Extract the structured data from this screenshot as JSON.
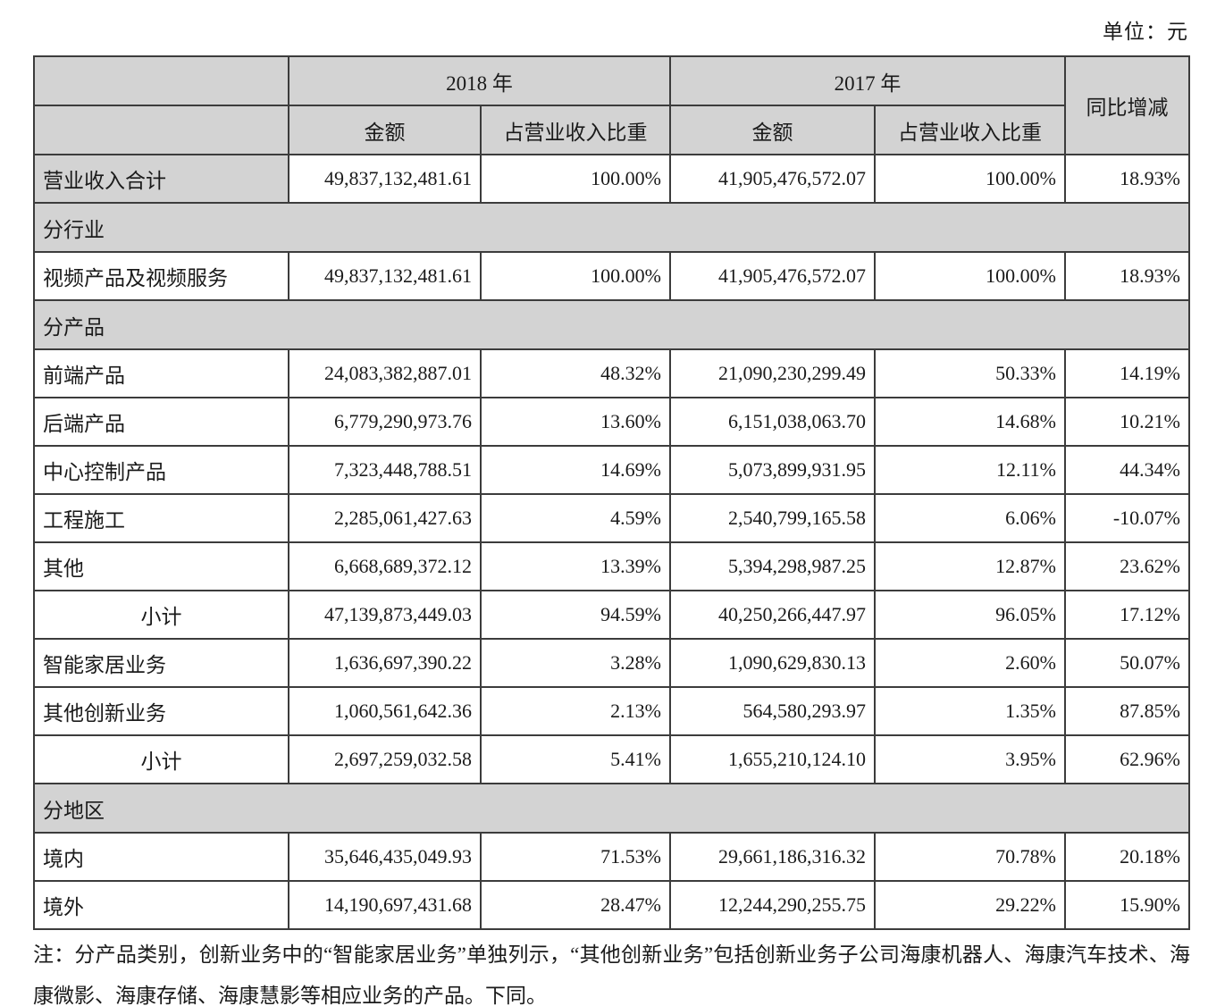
{
  "unit_label": "单位：元",
  "table": {
    "header": {
      "year_2018": "2018 年",
      "year_2017": "2017 年",
      "amount": "金额",
      "ratio": "占营业收入比重",
      "yoy": "同比增减"
    },
    "rows": [
      {
        "type": "data",
        "gray": true,
        "label": "营业收入合计",
        "amount_2018": "49,837,132,481.61",
        "ratio_2018": "100.00%",
        "amount_2017": "41,905,476,572.07",
        "ratio_2017": "100.00%",
        "yoy": "18.93%"
      },
      {
        "type": "section",
        "label": "分行业"
      },
      {
        "type": "data",
        "label": "视频产品及视频服务",
        "amount_2018": "49,837,132,481.61",
        "ratio_2018": "100.00%",
        "amount_2017": "41,905,476,572.07",
        "ratio_2017": "100.00%",
        "yoy": "18.93%"
      },
      {
        "type": "section",
        "label": "分产品"
      },
      {
        "type": "data",
        "label": "前端产品",
        "amount_2018": "24,083,382,887.01",
        "ratio_2018": "48.32%",
        "amount_2017": "21,090,230,299.49",
        "ratio_2017": "50.33%",
        "yoy": "14.19%"
      },
      {
        "type": "data",
        "label": "后端产品",
        "amount_2018": "6,779,290,973.76",
        "ratio_2018": "13.60%",
        "amount_2017": "6,151,038,063.70",
        "ratio_2017": "14.68%",
        "yoy": "10.21%"
      },
      {
        "type": "data",
        "label": "中心控制产品",
        "amount_2018": "7,323,448,788.51",
        "ratio_2018": "14.69%",
        "amount_2017": "5,073,899,931.95",
        "ratio_2017": "12.11%",
        "yoy": "44.34%"
      },
      {
        "type": "data",
        "label": "工程施工",
        "amount_2018": "2,285,061,427.63",
        "ratio_2018": "4.59%",
        "amount_2017": "2,540,799,165.58",
        "ratio_2017": "6.06%",
        "yoy": "-10.07%"
      },
      {
        "type": "data",
        "label": "其他",
        "amount_2018": "6,668,689,372.12",
        "ratio_2018": "13.39%",
        "amount_2017": "5,394,298,987.25",
        "ratio_2017": "12.87%",
        "yoy": "23.62%"
      },
      {
        "type": "data",
        "center": true,
        "label": "小计",
        "amount_2018": "47,139,873,449.03",
        "ratio_2018": "94.59%",
        "amount_2017": "40,250,266,447.97",
        "ratio_2017": "96.05%",
        "yoy": "17.12%"
      },
      {
        "type": "data",
        "label": "智能家居业务",
        "amount_2018": "1,636,697,390.22",
        "ratio_2018": "3.28%",
        "amount_2017": "1,090,629,830.13",
        "ratio_2017": "2.60%",
        "yoy": "50.07%"
      },
      {
        "type": "data",
        "label": "其他创新业务",
        "amount_2018": "1,060,561,642.36",
        "ratio_2018": "2.13%",
        "amount_2017": "564,580,293.97",
        "ratio_2017": "1.35%",
        "yoy": "87.85%"
      },
      {
        "type": "data",
        "center": true,
        "label": "小计",
        "amount_2018": "2,697,259,032.58",
        "ratio_2018": "5.41%",
        "amount_2017": "1,655,210,124.10",
        "ratio_2017": "3.95%",
        "yoy": "62.96%"
      },
      {
        "type": "section",
        "label": "分地区"
      },
      {
        "type": "data",
        "label": "境内",
        "amount_2018": "35,646,435,049.93",
        "ratio_2018": "71.53%",
        "amount_2017": "29,661,186,316.32",
        "ratio_2017": "70.78%",
        "yoy": "20.18%"
      },
      {
        "type": "data",
        "label": "境外",
        "amount_2018": "14,190,697,431.68",
        "ratio_2018": "28.47%",
        "amount_2017": "12,244,290,255.75",
        "ratio_2017": "29.22%",
        "yoy": "15.90%"
      }
    ]
  },
  "note": {
    "text": "注：分产品类别，创新业务中的“智能家居业务”单独列示，“其他创新业务”包括创新业务子公司海康机器人、海康汽车技术、海康微影、海康存储、海康慧影等相应业务的产品。下同。"
  }
}
